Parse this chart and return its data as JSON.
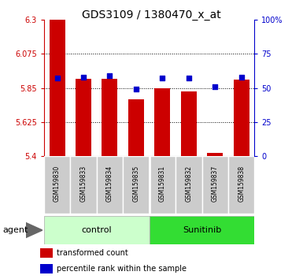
{
  "title": "GDS3109 / 1380470_x_at",
  "samples": [
    "GSM159830",
    "GSM159833",
    "GSM159834",
    "GSM159835",
    "GSM159831",
    "GSM159832",
    "GSM159837",
    "GSM159838"
  ],
  "red_values": [
    6.3,
    5.91,
    5.91,
    5.775,
    5.845,
    5.825,
    5.42,
    5.905
  ],
  "blue_values": [
    57,
    58,
    59,
    49,
    57,
    57,
    51,
    58
  ],
  "y_min": 5.4,
  "y_max": 6.3,
  "y_ticks_left": [
    5.4,
    5.625,
    5.85,
    6.075,
    6.3
  ],
  "y_ticks_right": [
    0,
    25,
    50,
    75,
    100
  ],
  "right_axis_color": "#0000cc",
  "left_axis_color": "#cc0000",
  "bar_color": "#cc0000",
  "dot_color": "#0000cc",
  "control_samples": 4,
  "control_label": "control",
  "treatment_label": "Sunitinib",
  "agent_label": "agent",
  "control_bg": "#ccffcc",
  "treatment_bg": "#33dd33",
  "legend_bar_label": "transformed count",
  "legend_dot_label": "percentile rank within the sample",
  "sample_bg": "#cccccc",
  "title_fontsize": 10,
  "bar_width": 0.6,
  "bar_base": 5.4
}
